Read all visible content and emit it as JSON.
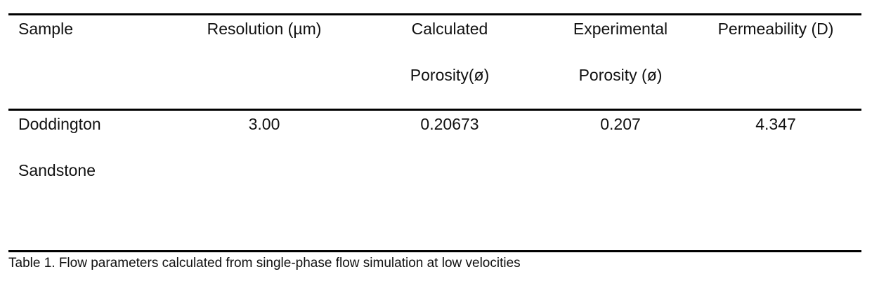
{
  "table": {
    "header": [
      [
        "Sample"
      ],
      [
        "Resolution (µm)"
      ],
      [
        "Calculated",
        "Porosity(ø)"
      ],
      [
        "Experimental",
        "Porosity (ø)"
      ],
      [
        "Permeability (D)"
      ]
    ],
    "rows": [
      [
        [
          "Doddington",
          "Sandstone"
        ],
        [
          "3.00"
        ],
        [
          "0.20673"
        ],
        [
          "0.207"
        ],
        [
          "4.347"
        ]
      ]
    ]
  },
  "caption": "Table 1. Flow parameters calculated from single-phase flow simulation at low velocities"
}
